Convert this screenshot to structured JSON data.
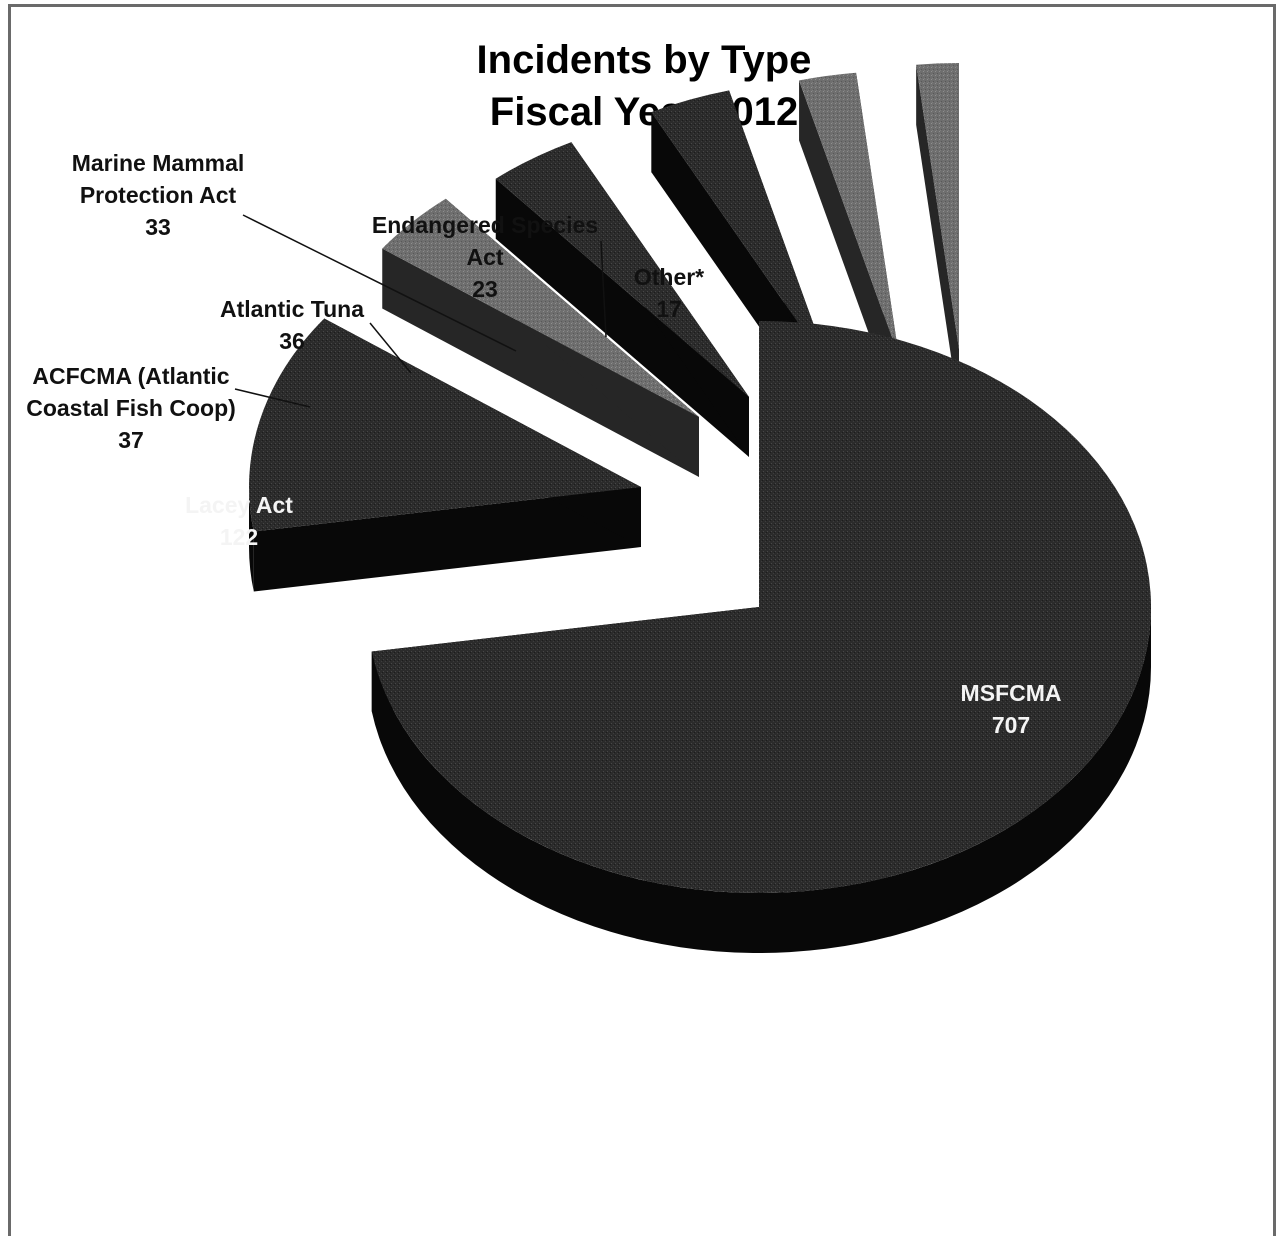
{
  "chart_data": {
    "type": "pie",
    "style": "3d-exploded",
    "title": [
      "Incidents by Type",
      "Fiscal Year 2012"
    ],
    "slices": [
      {
        "label": [
          "MSFCMA"
        ],
        "value": 707,
        "shade": "dark",
        "label_color": "white"
      },
      {
        "label": [
          "Lacey Act"
        ],
        "value": 122,
        "shade": "dark",
        "label_color": "white"
      },
      {
        "label": [
          "ACFCMA (Atlantic",
          "Coastal Fish Coop)"
        ],
        "value": 37,
        "shade": "gray",
        "label_color": "black"
      },
      {
        "label": [
          "Atlantic Tuna"
        ],
        "value": 36,
        "shade": "dark",
        "label_color": "black"
      },
      {
        "label": [
          "Marine Mammal",
          "Protection Act"
        ],
        "value": 33,
        "shade": "dark",
        "label_color": "black"
      },
      {
        "label": [
          "Endangered Species",
          "Act"
        ],
        "value": 23,
        "shade": "gray",
        "label_color": "black"
      },
      {
        "label": [
          "Other*"
        ],
        "value": 17,
        "shade": "gray",
        "label_color": "black"
      }
    ],
    "colors": {
      "dark_top": "#2b2b2b",
      "dark_side": "#080808",
      "gray_top": "#6e6e6e",
      "gray_side": "#262626"
    }
  }
}
